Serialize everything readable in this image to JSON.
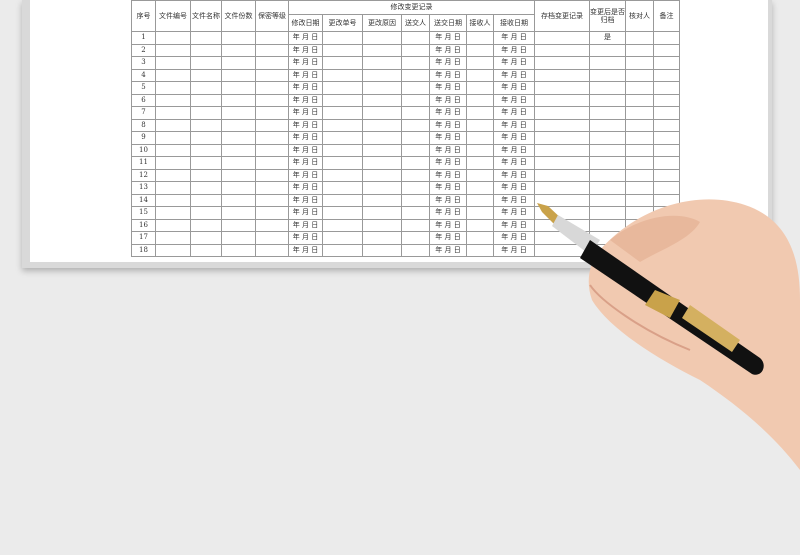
{
  "table": {
    "top_headers": [
      "序号",
      "文件编号",
      "文件名称",
      "文件份数",
      "保密等级",
      "修改变更记录",
      "存档变更记录",
      "变更后是否归档",
      "核对人",
      "备注"
    ],
    "sub_headers": [
      "修改日期",
      "更改单号",
      "更改原因",
      "送交人",
      "送交日期",
      "接收人",
      "接收日期"
    ],
    "date_placeholder": "年 月 日",
    "rows": [
      {
        "no": "1",
        "archived": "是"
      },
      {
        "no": "2"
      },
      {
        "no": "3"
      },
      {
        "no": "4"
      },
      {
        "no": "5"
      },
      {
        "no": "6"
      },
      {
        "no": "7"
      },
      {
        "no": "8"
      },
      {
        "no": "9"
      },
      {
        "no": "10"
      },
      {
        "no": "11"
      },
      {
        "no": "12"
      },
      {
        "no": "13"
      },
      {
        "no": "14"
      },
      {
        "no": "15"
      },
      {
        "no": "16"
      },
      {
        "no": "17"
      },
      {
        "no": "18"
      }
    ]
  }
}
